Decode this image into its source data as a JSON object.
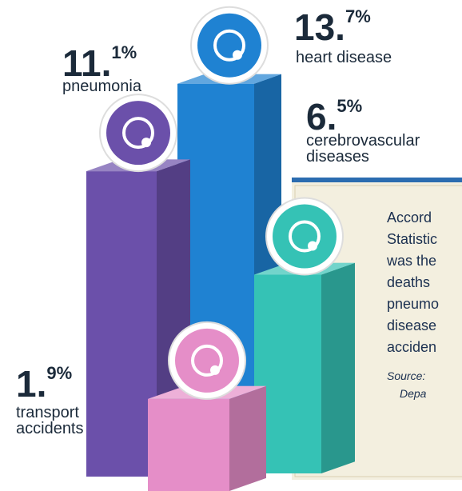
{
  "chart_data": {
    "type": "bar",
    "categories": [
      "pneumonia",
      "heart disease",
      "cerebrovascular diseases",
      "transport accidents"
    ],
    "values": [
      11.1,
      13.7,
      6.5,
      1.9
    ],
    "value_labels": [
      "11.1%",
      "13.7%",
      "6.5%",
      "1.9%"
    ],
    "colors": [
      "#6b50aa",
      "#1f82d2",
      "#35c2b5",
      "#e58ec8"
    ]
  },
  "note": {
    "lines": [
      "Accord",
      "Statistic",
      "was the",
      "deaths",
      "pneumo",
      "disease",
      "acciden"
    ],
    "source": [
      "Source:",
      "Depa"
    ]
  }
}
